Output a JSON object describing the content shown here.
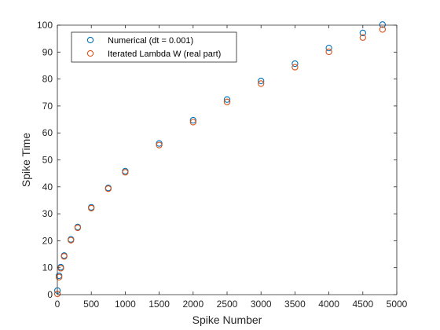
{
  "chart_data": {
    "type": "scatter",
    "xlabel": "Spike Number",
    "ylabel": "Spike Time",
    "xlim": [
      0,
      5000
    ],
    "ylim": [
      0,
      100
    ],
    "xticks": [
      0,
      500,
      1000,
      1500,
      2000,
      2500,
      3000,
      3500,
      4000,
      4500,
      5000
    ],
    "yticks": [
      0,
      10,
      20,
      30,
      40,
      50,
      60,
      70,
      80,
      90,
      100
    ],
    "grid": false,
    "legend_position": "top-left",
    "marker": "open-circle",
    "series": [
      {
        "name": "Numerical (dt = 0.001)",
        "color": "#0072BD",
        "x": [
          1,
          25,
          50,
          100,
          200,
          300,
          500,
          750,
          1000,
          1500,
          2000,
          2500,
          3000,
          3500,
          4000,
          4500,
          4790
        ],
        "y": [
          1.5,
          7,
          10.2,
          14.5,
          20.5,
          25.1,
          32.4,
          39.6,
          45.8,
          56.1,
          64.7,
          72.4,
          79.3,
          85.7,
          91.5,
          97.1,
          100.2
        ]
      },
      {
        "name": "Iterated Lambda W (real part)",
        "color": "#D95319",
        "x": [
          1,
          25,
          50,
          100,
          200,
          300,
          500,
          750,
          1000,
          1500,
          2000,
          2500,
          3000,
          3500,
          4000,
          4500,
          4790
        ],
        "y": [
          0.3,
          6.5,
          9.8,
          14.2,
          20.2,
          24.8,
          32.1,
          39.3,
          45.4,
          55.5,
          64.0,
          71.5,
          78.3,
          84.4,
          90.1,
          95.4,
          98.4
        ]
      }
    ]
  }
}
